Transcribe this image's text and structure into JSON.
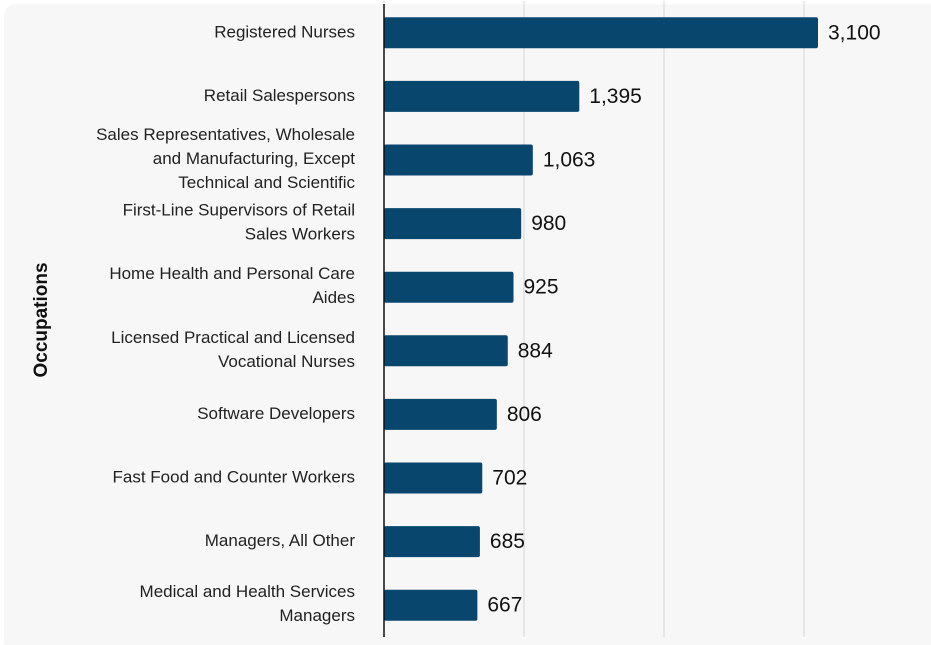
{
  "chart_data": {
    "type": "barh",
    "y_label": "Occupations",
    "categories": [
      "Registered Nurses",
      "Retail Salespersons",
      "Sales Representatives, Wholesale\nand Manufacturing, Except\nTechnical and Scientific",
      "First-Line Supervisors of Retail\nSales Workers",
      "Home Health and Personal Care\nAides",
      "Licensed Practical and Licensed\nVocational Nurses",
      "Software Developers",
      "Fast Food and Counter Workers",
      "Managers, All Other",
      "Medical and Health Services\nManagers"
    ],
    "values": [
      3100,
      1395,
      1063,
      980,
      925,
      884,
      806,
      702,
      685,
      667
    ],
    "value_labels": [
      "3,100",
      "1,395",
      "1,063",
      "980",
      "925",
      "884",
      "806",
      "702",
      "685",
      "667"
    ],
    "color": "#08466e",
    "xlim": [
      0,
      3900
    ],
    "xticks": [
      0,
      1000,
      2000,
      3000
    ],
    "grid": true
  }
}
